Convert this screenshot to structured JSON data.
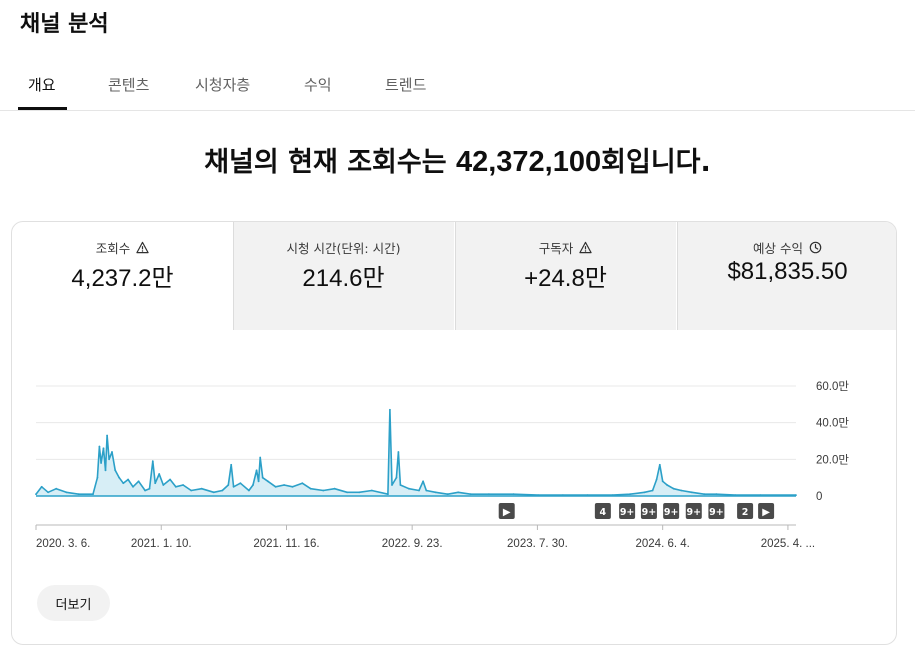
{
  "page": {
    "title": "채널 분석"
  },
  "tabs": [
    {
      "label": "개요",
      "active": true
    },
    {
      "label": "콘텐츠",
      "active": false
    },
    {
      "label": "시청자층",
      "active": false
    },
    {
      "label": "수익",
      "active": false
    },
    {
      "label": "트렌드",
      "active": false
    }
  ],
  "headline": {
    "prefix": "채널의 현재 조회수는 ",
    "number": "42,372,100",
    "suffix": "회입니다."
  },
  "metrics": [
    {
      "label": "조회수",
      "value": "4,237.2만",
      "icon": "warning-icon",
      "selected": true
    },
    {
      "label": "시청 시간(단위: 시간)",
      "value": "214.6만",
      "icon": "",
      "selected": false
    },
    {
      "label": "구독자",
      "value": "+24.8만",
      "icon": "warning-icon",
      "selected": false
    },
    {
      "label": "예상 수익",
      "value": "$81,835.50",
      "icon": "clock-icon",
      "selected": false
    }
  ],
  "colors": {
    "line": "#2ca0c8",
    "fill": "#d7eef6",
    "grid": "#e8e8e8",
    "axis": "#909090",
    "marker": "#4a4a4a"
  },
  "chart_data": {
    "type": "area",
    "title": "",
    "xlabel": "",
    "ylabel": "",
    "ylim": [
      0,
      60
    ],
    "y_unit": "만",
    "y_ticks": [
      {
        "value": 0,
        "label": "0"
      },
      {
        "value": 20,
        "label": "20.0만"
      },
      {
        "value": 40,
        "label": "40.0만"
      },
      {
        "value": 60,
        "label": "60.0만"
      }
    ],
    "x_range": [
      "2020-03-06",
      "2025-04-30"
    ],
    "x_ticks": [
      {
        "date": "2020-03-06",
        "label": "2020. 3. 6."
      },
      {
        "date": "2021-01-10",
        "label": "2021. 1. 10."
      },
      {
        "date": "2021-11-16",
        "label": "2021. 11. 16."
      },
      {
        "date": "2022-09-23",
        "label": "2022. 9. 23."
      },
      {
        "date": "2023-07-30",
        "label": "2023. 7. 30."
      },
      {
        "date": "2024-06-04",
        "label": "2024. 6. 4."
      },
      {
        "date": "2025-04-10",
        "label": "2025. 4. ..."
      }
    ],
    "grid": true,
    "series": [
      {
        "values": [
          [
            "2020-03-06",
            1
          ],
          [
            "2020-03-20",
            5
          ],
          [
            "2020-04-05",
            2
          ],
          [
            "2020-04-25",
            4
          ],
          [
            "2020-05-20",
            2
          ],
          [
            "2020-06-20",
            1
          ],
          [
            "2020-07-25",
            1
          ],
          [
            "2020-08-05",
            10
          ],
          [
            "2020-08-10",
            27
          ],
          [
            "2020-08-14",
            18
          ],
          [
            "2020-08-20",
            26
          ],
          [
            "2020-08-25",
            14
          ],
          [
            "2020-08-29",
            33
          ],
          [
            "2020-09-03",
            20
          ],
          [
            "2020-09-10",
            24
          ],
          [
            "2020-09-18",
            14
          ],
          [
            "2020-09-28",
            10
          ],
          [
            "2020-10-08",
            7
          ],
          [
            "2020-10-20",
            9
          ],
          [
            "2020-11-01",
            5
          ],
          [
            "2020-11-15",
            8
          ],
          [
            "2020-12-01",
            3
          ],
          [
            "2020-12-12",
            4
          ],
          [
            "2020-12-20",
            19
          ],
          [
            "2020-12-26",
            7
          ],
          [
            "2021-01-05",
            12
          ],
          [
            "2021-01-15",
            6
          ],
          [
            "2021-02-01",
            9
          ],
          [
            "2021-02-15",
            5
          ],
          [
            "2021-03-05",
            6
          ],
          [
            "2021-03-25",
            3
          ],
          [
            "2021-04-20",
            4
          ],
          [
            "2021-05-20",
            2
          ],
          [
            "2021-06-10",
            3
          ],
          [
            "2021-06-25",
            6
          ],
          [
            "2021-07-02",
            17
          ],
          [
            "2021-07-08",
            5
          ],
          [
            "2021-07-25",
            7
          ],
          [
            "2021-08-15",
            3
          ],
          [
            "2021-08-25",
            6
          ],
          [
            "2021-09-03",
            14
          ],
          [
            "2021-09-08",
            8
          ],
          [
            "2021-09-12",
            21
          ],
          [
            "2021-09-18",
            10
          ],
          [
            "2021-10-01",
            8
          ],
          [
            "2021-10-20",
            5
          ],
          [
            "2021-11-10",
            6
          ],
          [
            "2021-12-01",
            5
          ],
          [
            "2021-12-25",
            7
          ],
          [
            "2022-01-15",
            4
          ],
          [
            "2022-02-15",
            3
          ],
          [
            "2022-03-15",
            4
          ],
          [
            "2022-04-15",
            2
          ],
          [
            "2022-05-15",
            2
          ],
          [
            "2022-06-15",
            3
          ],
          [
            "2022-07-25",
            1
          ],
          [
            "2022-07-30",
            47
          ],
          [
            "2022-08-04",
            6
          ],
          [
            "2022-08-15",
            10
          ],
          [
            "2022-08-20",
            24
          ],
          [
            "2022-08-25",
            6
          ],
          [
            "2022-09-15",
            4
          ],
          [
            "2022-10-10",
            3
          ],
          [
            "2022-10-20",
            8
          ],
          [
            "2022-10-28",
            3
          ],
          [
            "2022-11-20",
            2
          ],
          [
            "2022-12-20",
            1
          ],
          [
            "2023-01-15",
            2
          ],
          [
            "2023-02-15",
            1
          ],
          [
            "2023-04-01",
            1
          ],
          [
            "2023-06-01",
            1
          ],
          [
            "2023-08-01",
            0.5
          ],
          [
            "2023-10-01",
            0.5
          ],
          [
            "2023-12-01",
            0.5
          ],
          [
            "2024-02-01",
            0.5
          ],
          [
            "2024-03-15",
            1
          ],
          [
            "2024-04-20",
            2
          ],
          [
            "2024-05-10",
            3
          ],
          [
            "2024-05-20",
            9
          ],
          [
            "2024-05-28",
            17
          ],
          [
            "2024-06-04",
            8
          ],
          [
            "2024-06-15",
            6
          ],
          [
            "2024-07-01",
            4
          ],
          [
            "2024-07-20",
            3
          ],
          [
            "2024-08-15",
            2
          ],
          [
            "2024-09-15",
            1
          ],
          [
            "2024-10-15",
            1
          ],
          [
            "2024-12-01",
            0.5
          ],
          [
            "2025-02-01",
            0.5
          ],
          [
            "2025-04-30",
            0.5
          ]
        ]
      }
    ],
    "event_markers": [
      {
        "date": "2023-05-15",
        "label": "▶"
      },
      {
        "date": "2024-01-08",
        "label": "4"
      },
      {
        "date": "2024-03-08",
        "label": "9+"
      },
      {
        "date": "2024-05-01",
        "label": "9+"
      },
      {
        "date": "2024-06-25",
        "label": "9+"
      },
      {
        "date": "2024-08-20",
        "label": "9+"
      },
      {
        "date": "2024-10-15",
        "label": "9+"
      },
      {
        "date": "2024-12-25",
        "label": "2"
      },
      {
        "date": "2025-02-15",
        "label": "▶"
      }
    ]
  },
  "footer": {
    "more_label": "더보기"
  }
}
